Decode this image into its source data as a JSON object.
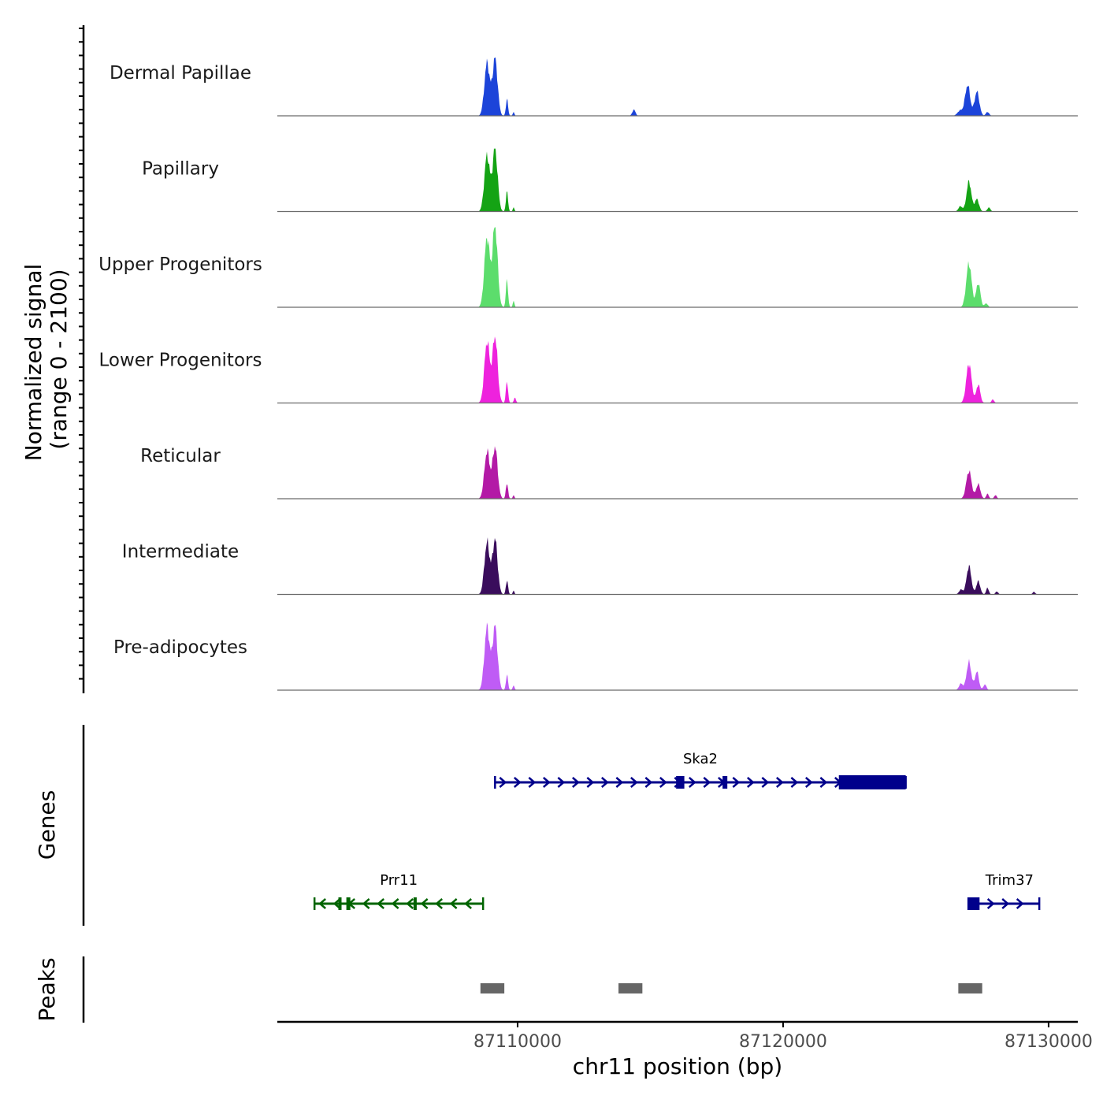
{
  "chart_data": {
    "type": "area",
    "title": "",
    "ylabel": "Normalized signal",
    "ylabel_range": "(range 0 - 2100)",
    "ylim": [
      0,
      2100
    ],
    "xlabel": "chr11 position (bp)",
    "xlim": [
      87100950,
      87131100
    ],
    "x_ticks": [
      87110000,
      87120000,
      87130000
    ],
    "x_tick_labels": [
      "87110000",
      "87120000",
      "87130000"
    ],
    "coverage_tracks": [
      {
        "name": "Dermal Papillae",
        "color": "#1c44d9",
        "peaks": [
          {
            "center": 87108850,
            "width": 200,
            "height": 1200
          },
          {
            "center": 87109150,
            "width": 190,
            "height": 1300
          },
          {
            "center": 87109600,
            "width": 80,
            "height": 380
          },
          {
            "center": 87109850,
            "width": 60,
            "height": 90
          },
          {
            "center": 87114380,
            "width": 120,
            "height": 140
          },
          {
            "center": 87126670,
            "width": 200,
            "height": 120
          },
          {
            "center": 87126950,
            "width": 190,
            "height": 700
          },
          {
            "center": 87127300,
            "width": 180,
            "height": 550
          },
          {
            "center": 87127700,
            "width": 120,
            "height": 90
          }
        ]
      },
      {
        "name": "Papillary",
        "color": "#14a314",
        "peaks": [
          {
            "center": 87108850,
            "width": 200,
            "height": 1280
          },
          {
            "center": 87109150,
            "width": 190,
            "height": 1420
          },
          {
            "center": 87109600,
            "width": 80,
            "height": 450
          },
          {
            "center": 87109850,
            "width": 60,
            "height": 100
          },
          {
            "center": 87126680,
            "width": 150,
            "height": 120
          },
          {
            "center": 87127000,
            "width": 180,
            "height": 680
          },
          {
            "center": 87127300,
            "width": 160,
            "height": 280
          },
          {
            "center": 87127750,
            "width": 120,
            "height": 90
          }
        ]
      },
      {
        "name": "Upper Progenitors",
        "color": "#5cdd6c",
        "peaks": [
          {
            "center": 87108850,
            "width": 200,
            "height": 1600
          },
          {
            "center": 87109150,
            "width": 190,
            "height": 1850
          },
          {
            "center": 87109600,
            "width": 80,
            "height": 620
          },
          {
            "center": 87109850,
            "width": 60,
            "height": 150
          },
          {
            "center": 87127000,
            "width": 200,
            "height": 1000
          },
          {
            "center": 87127350,
            "width": 160,
            "height": 550
          },
          {
            "center": 87127650,
            "width": 120,
            "height": 90
          }
        ]
      },
      {
        "name": "Lower Progenitors",
        "color": "#ee22dd",
        "peaks": [
          {
            "center": 87108850,
            "width": 200,
            "height": 1400
          },
          {
            "center": 87109150,
            "width": 190,
            "height": 1520
          },
          {
            "center": 87109600,
            "width": 80,
            "height": 500
          },
          {
            "center": 87109900,
            "width": 80,
            "height": 120
          },
          {
            "center": 87127000,
            "width": 200,
            "height": 900
          },
          {
            "center": 87127350,
            "width": 150,
            "height": 420
          },
          {
            "center": 87127900,
            "width": 100,
            "height": 80
          }
        ]
      },
      {
        "name": "Reticular",
        "color": "#b31aa6",
        "peaks": [
          {
            "center": 87108850,
            "width": 200,
            "height": 1080
          },
          {
            "center": 87109150,
            "width": 190,
            "height": 1180
          },
          {
            "center": 87109600,
            "width": 80,
            "height": 370
          },
          {
            "center": 87109850,
            "width": 60,
            "height": 80
          },
          {
            "center": 87127000,
            "width": 200,
            "height": 630
          },
          {
            "center": 87127350,
            "width": 160,
            "height": 330
          },
          {
            "center": 87127700,
            "width": 100,
            "height": 110
          },
          {
            "center": 87128000,
            "width": 100,
            "height": 80
          }
        ]
      },
      {
        "name": "Intermediate",
        "color": "#3a0d5c",
        "peaks": [
          {
            "center": 87108850,
            "width": 200,
            "height": 1180
          },
          {
            "center": 87109150,
            "width": 190,
            "height": 1250
          },
          {
            "center": 87109600,
            "width": 80,
            "height": 330
          },
          {
            "center": 87109850,
            "width": 60,
            "height": 90
          },
          {
            "center": 87126700,
            "width": 150,
            "height": 110
          },
          {
            "center": 87127000,
            "width": 180,
            "height": 640
          },
          {
            "center": 87127350,
            "width": 150,
            "height": 300
          },
          {
            "center": 87127700,
            "width": 100,
            "height": 150
          },
          {
            "center": 87128050,
            "width": 100,
            "height": 70
          },
          {
            "center": 87129450,
            "width": 100,
            "height": 60
          }
        ]
      },
      {
        "name": "Pre-adipocytes",
        "color": "#bf5cf5",
        "peaks": [
          {
            "center": 87108850,
            "width": 200,
            "height": 1430
          },
          {
            "center": 87109150,
            "width": 190,
            "height": 1450
          },
          {
            "center": 87109600,
            "width": 80,
            "height": 350
          },
          {
            "center": 87109850,
            "width": 70,
            "height": 110
          },
          {
            "center": 87126700,
            "width": 150,
            "height": 150
          },
          {
            "center": 87127000,
            "width": 180,
            "height": 640
          },
          {
            "center": 87127300,
            "width": 150,
            "height": 420
          },
          {
            "center": 87127600,
            "width": 120,
            "height": 130
          }
        ]
      }
    ],
    "genes_track": {
      "title": "Genes",
      "genes": [
        {
          "name": "Ska2",
          "strand": "+",
          "color": "#00008b",
          "start": 87109150,
          "end": 87124620,
          "exons": [
            [
              87115970,
              87116280
            ],
            [
              87117720,
              87117900
            ],
            [
              87122100,
              87124620
            ]
          ],
          "thick_exon": [
            87122100,
            87124620
          ]
        },
        {
          "name": "Prr11",
          "strand": "-",
          "color": "#006400",
          "start": 87102350,
          "end": 87108700,
          "exons": [
            [
              87103250,
              87103350
            ],
            [
              87103550,
              87103700
            ],
            [
              87106080,
              87106200
            ]
          ],
          "thick_exon": null
        },
        {
          "name": "Trim37",
          "strand": "+",
          "color": "#00008b",
          "start": 87126980,
          "end": 87129650,
          "exons": [
            [
              87126980,
              87127000
            ],
            [
              87127080,
              87127400
            ]
          ],
          "thick_exon": null
        }
      ]
    },
    "peaks_track": {
      "title": "Peaks",
      "color": "#666666",
      "regions": [
        {
          "start": 87108600,
          "end": 87109500
        },
        {
          "start": 87113800,
          "end": 87114700
        },
        {
          "start": 87126600,
          "end": 87127500
        }
      ]
    }
  }
}
